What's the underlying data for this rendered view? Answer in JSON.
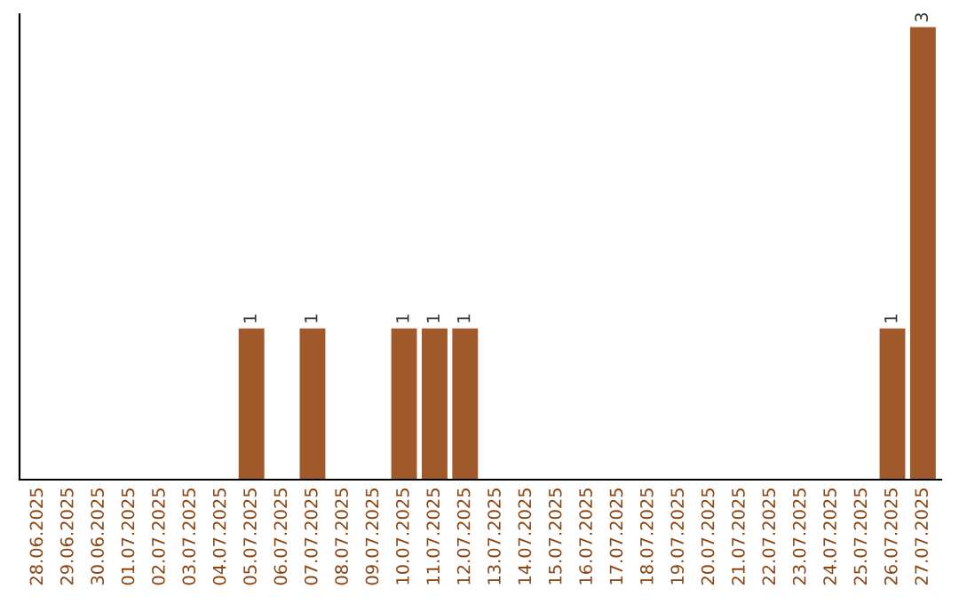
{
  "chart_data": {
    "type": "bar",
    "categories": [
      "28.06.2025",
      "29.06.2025",
      "30.06.2025",
      "01.07.2025",
      "02.07.2025",
      "03.07.2025",
      "04.07.2025",
      "05.07.2025",
      "06.07.2025",
      "07.07.2025",
      "08.07.2025",
      "09.07.2025",
      "10.07.2025",
      "11.07.2025",
      "12.07.2025",
      "13.07.2025",
      "14.07.2025",
      "15.07.2025",
      "16.07.2025",
      "17.07.2025",
      "18.07.2025",
      "19.07.2025",
      "20.07.2025",
      "21.07.2025",
      "22.07.2025",
      "23.07.2025",
      "24.07.2025",
      "25.07.2025",
      "26.07.2025",
      "27.07.2025"
    ],
    "values": [
      0,
      0,
      0,
      0,
      0,
      0,
      0,
      1,
      0,
      1,
      0,
      0,
      1,
      1,
      1,
      0,
      0,
      0,
      0,
      0,
      0,
      0,
      0,
      0,
      0,
      0,
      0,
      0,
      1,
      3
    ],
    "value_labels": [
      null,
      null,
      null,
      null,
      null,
      null,
      null,
      "1",
      null,
      "1",
      null,
      null,
      "1",
      "1",
      "1",
      null,
      null,
      null,
      null,
      null,
      null,
      null,
      null,
      null,
      null,
      null,
      null,
      null,
      "1",
      "3"
    ],
    "color": "#a0592a",
    "tick_labels": "x",
    "grid": false,
    "legend": false
  }
}
